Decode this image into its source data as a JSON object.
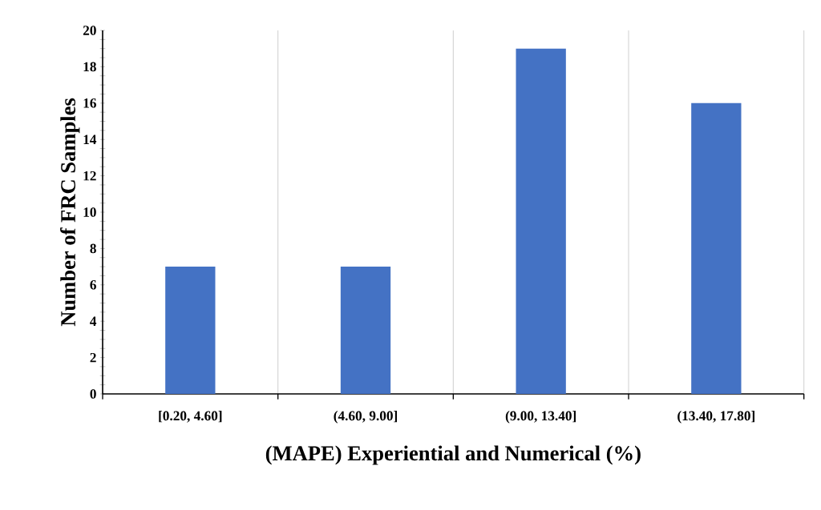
{
  "chart_data": {
    "type": "bar",
    "xlabel": "(MAPE) Experiential and Numerical (%)",
    "ylabel": "Number of  FRC Samples",
    "categories": [
      "[0.20, 4.60]",
      "(4.60, 9.00]",
      "(9.00, 13.40]",
      "(13.40, 17.80]"
    ],
    "values": [
      7,
      7,
      19,
      16
    ],
    "color": "#4472c4",
    "ylim": [
      0,
      20
    ],
    "yticks": [
      0,
      2,
      4,
      6,
      8,
      10,
      12,
      14,
      16,
      18,
      20
    ],
    "grid": "x"
  }
}
